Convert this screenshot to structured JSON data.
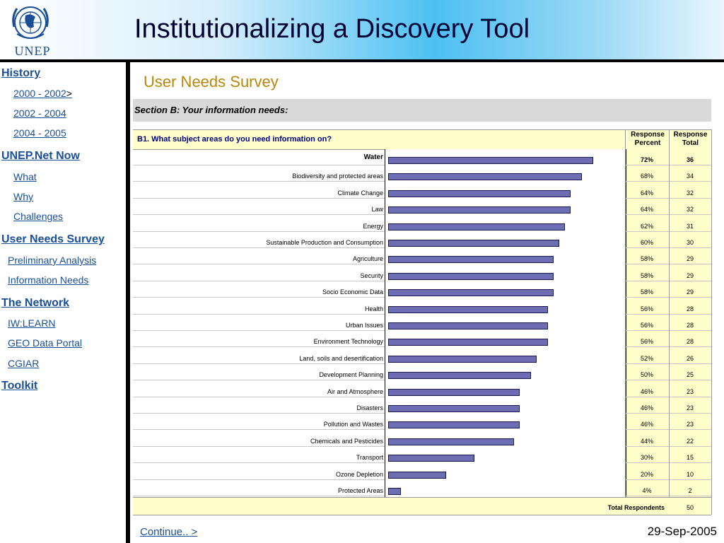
{
  "header": {
    "title": "Institutionalizing a Discovery Tool",
    "logo_text": "UNEP"
  },
  "sidebar": {
    "items": [
      {
        "label": "History",
        "level": "top"
      },
      {
        "label": "2000 -  2002",
        "suffix": ">",
        "level": "sub"
      },
      {
        "label": "2002 -  2004",
        "level": "sub"
      },
      {
        "label": "2004 - 2005",
        "level": "sub"
      },
      {
        "label": "UNEP.Net Now",
        "level": "top"
      },
      {
        "label": "What",
        "level": "sub"
      },
      {
        "label": "Why",
        "level": "sub"
      },
      {
        "label": "Challenges",
        "level": "sub"
      },
      {
        "label": "User Needs Survey",
        "level": "top"
      },
      {
        "label": "Preliminary Analysis",
        "level": "sub2"
      },
      {
        "label": "Information Needs",
        "level": "sub2"
      },
      {
        "label": "The Network",
        "level": "top"
      },
      {
        "label": "IW:LEARN",
        "level": "sub2"
      },
      {
        "label": "GEO Data Portal",
        "level": "sub2"
      },
      {
        "label": "CGIAR",
        "level": "sub2"
      },
      {
        "label": "Toolkit",
        "level": "top"
      }
    ]
  },
  "main": {
    "subtitle": "User Needs Survey",
    "section": "Section B: Your information needs:",
    "question": "B1.  What subject areas do you need information on?",
    "col_percent": "Response Percent",
    "col_total": "Response Total",
    "total_label": "Total Respondents",
    "total_value": "50"
  },
  "chart_data": {
    "type": "bar",
    "orientation": "horizontal",
    "categories": [
      "Water",
      "Biodiversity and protected areas",
      "Climate Change",
      "Law",
      "Energy",
      "Sustainable Production and Consumption",
      "Agriculture",
      "Security",
      "Socio Economic Data",
      "Health",
      "Urban Issues",
      "Environment Technology",
      "Land, soils and desertification",
      "Development Planning",
      "Air and Atmosphere",
      "Disasters",
      "Pollution and Wastes",
      "Chemicals and Pesticides",
      "Transport",
      "Ozone Depletion",
      "Protected Areas"
    ],
    "percent_labels": [
      "72%",
      "68%",
      "64%",
      "64%",
      "62%",
      "60%",
      "58%",
      "58%",
      "58%",
      "56%",
      "56%",
      "56%",
      "52%",
      "50%",
      "46%",
      "46%",
      "46%",
      "44%",
      "30%",
      "20%",
      "4%"
    ],
    "values": [
      72,
      68,
      64,
      64,
      62,
      60,
      58,
      58,
      58,
      56,
      56,
      56,
      52,
      50,
      46,
      46,
      46,
      44,
      30,
      20,
      4
    ],
    "totals": [
      "36",
      "34",
      "32",
      "32",
      "31",
      "30",
      "29",
      "29",
      "29",
      "28",
      "28",
      "28",
      "26",
      "25",
      "23",
      "23",
      "23",
      "22",
      "15",
      "10",
      "2"
    ],
    "xlim": [
      0,
      80
    ],
    "grid": false,
    "colors": {
      "bar": "#6d6db3",
      "bar_border": "#1a1a4d"
    }
  },
  "footer": {
    "continue": "Continue.. >",
    "date": "29-Sep-2005"
  },
  "colors": {
    "link": "#1a4f97",
    "subtitle": "#b8860b",
    "table_bg": "#ffffcc"
  }
}
